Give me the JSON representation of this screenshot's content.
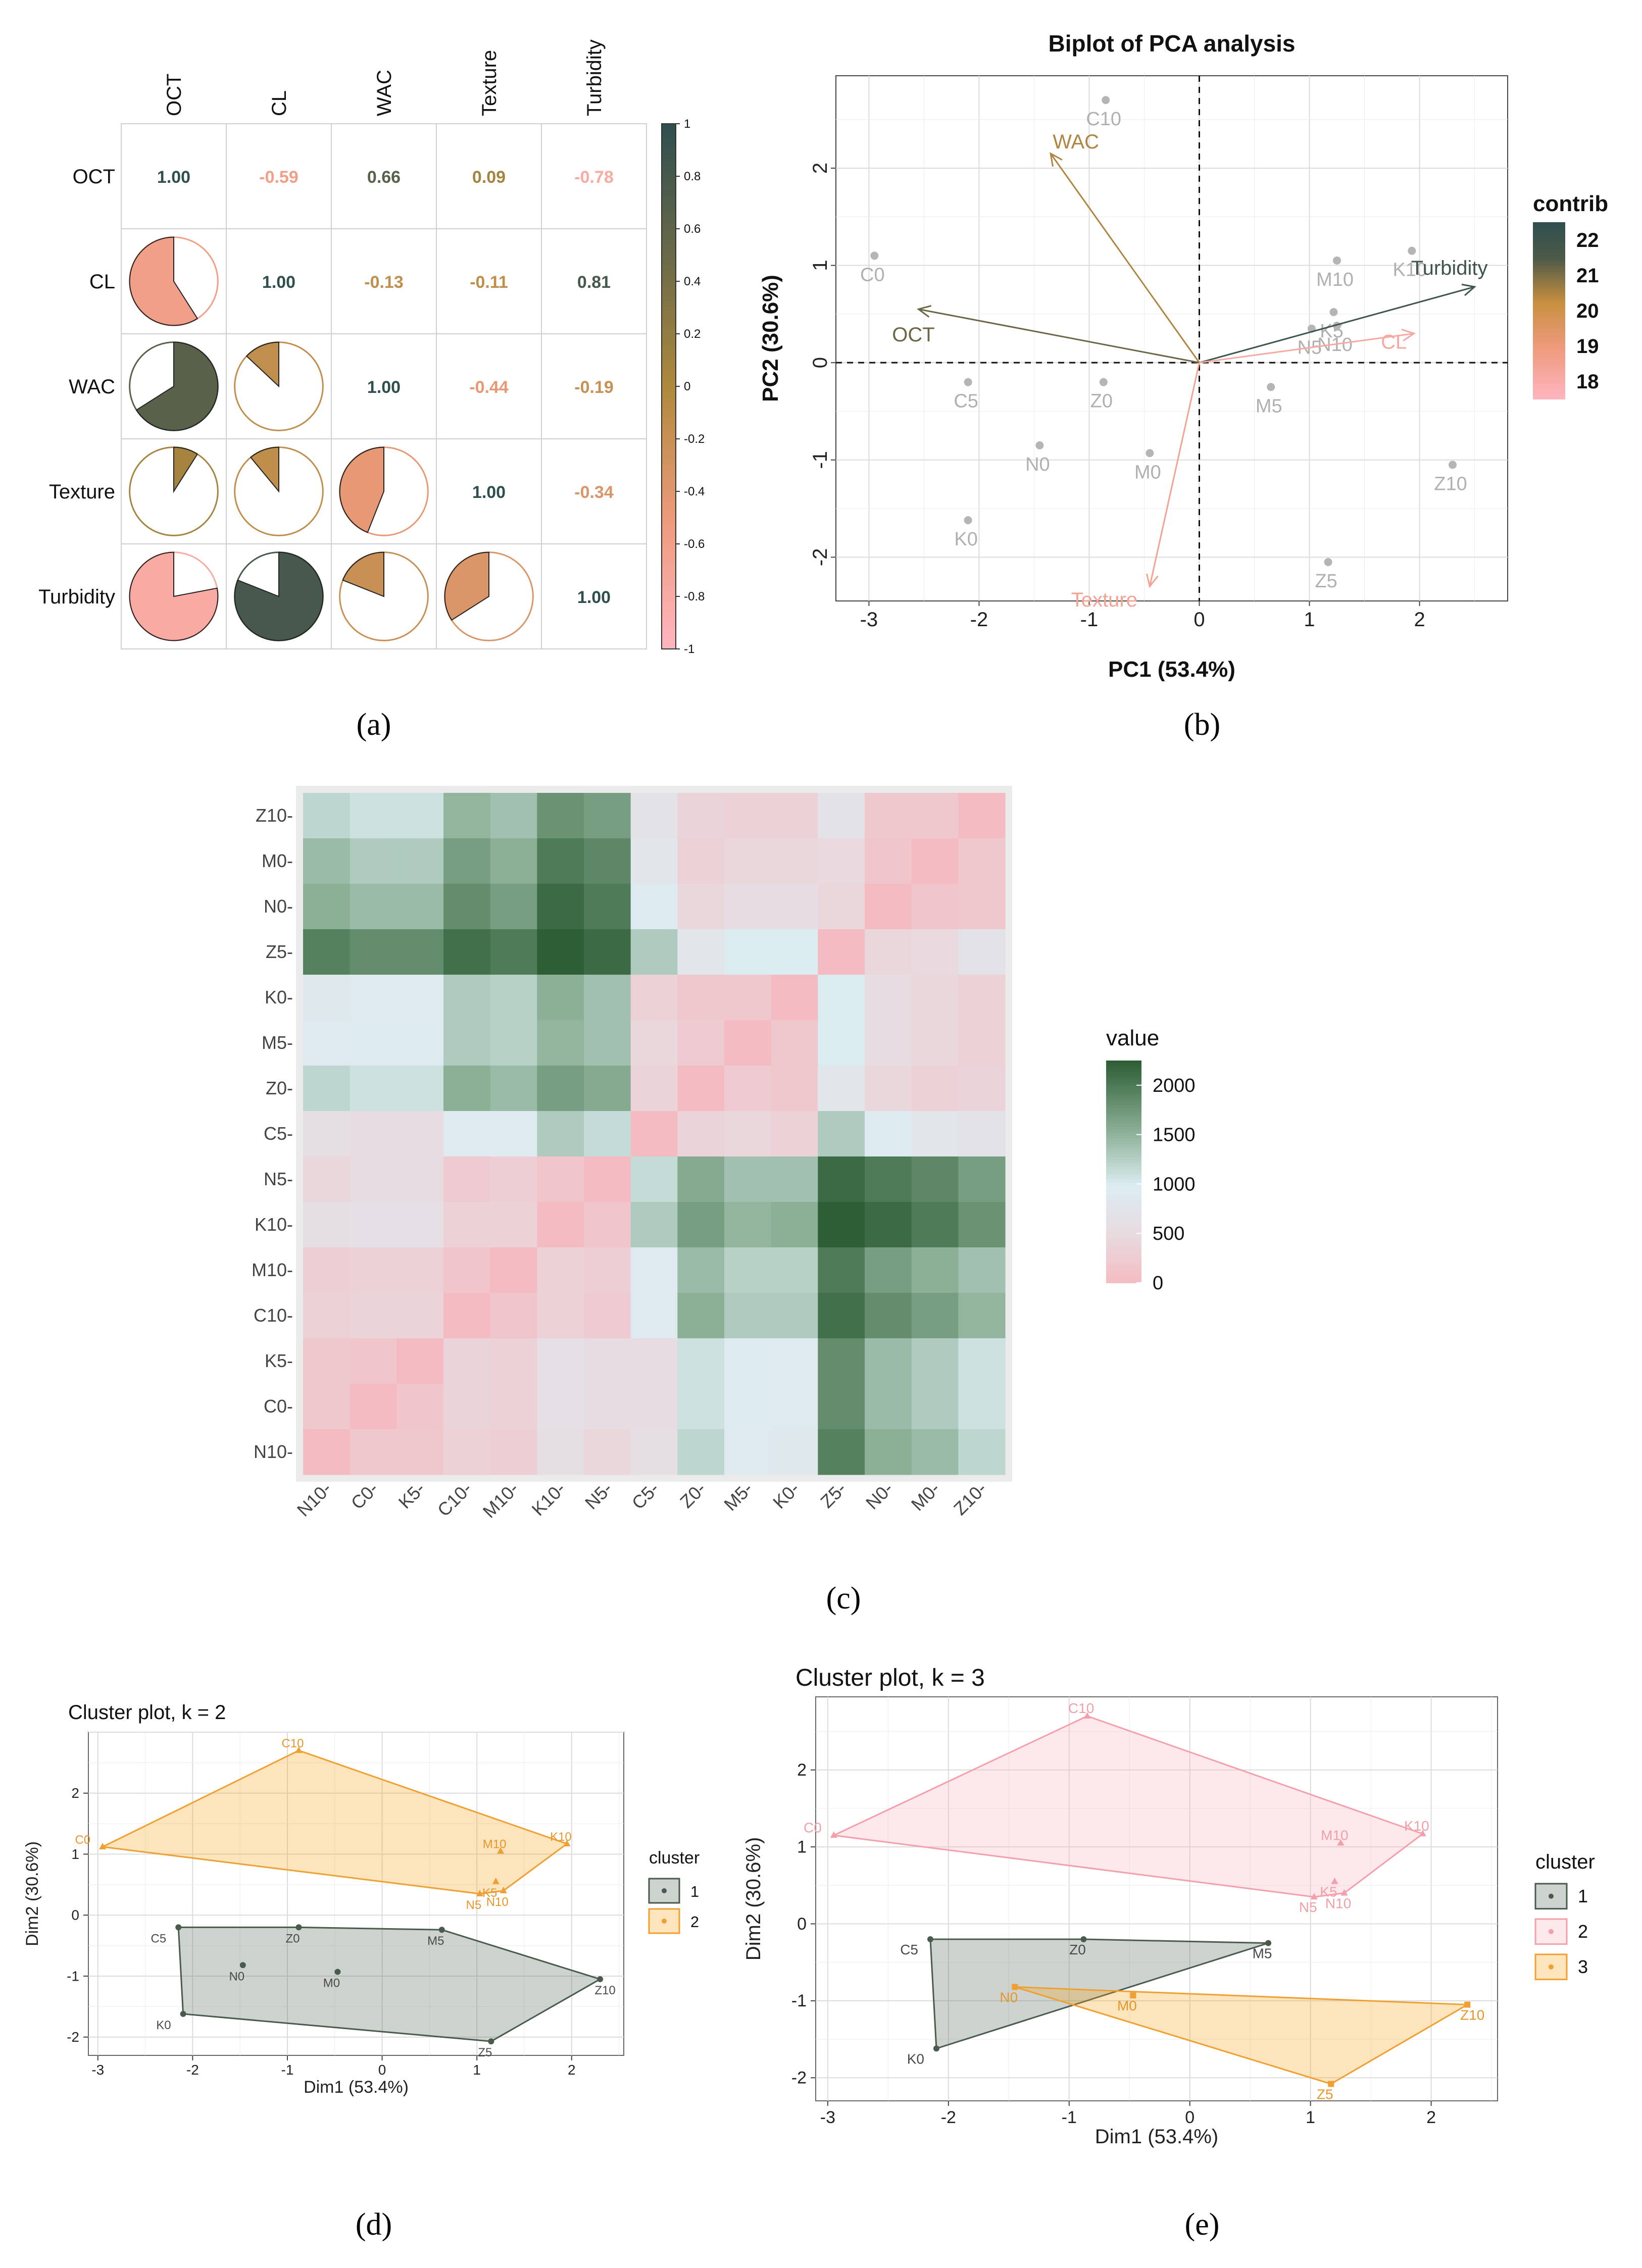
{
  "colors": {
    "corr_pos_strong": "#3d5750",
    "corr_neg_pink": "#f4a9a4",
    "corr_salmon": "#ec9a7c",
    "corr_gold": "#c49444",
    "corr_olive": "#a07a30",
    "heat_high": "#2e5e36",
    "heat_mid": "#dcedf2",
    "heat_low": "#f2bcc0",
    "cluster1": "#4a5a4d",
    "cluster2_orange": "#f0a030",
    "cluster2_pink": "#f8b4bc",
    "cluster3": "#f0a030",
    "pca_dark": "#3d4a45",
    "pca_gold": "#8a7040",
    "pca_pink": "#f08c94"
  },
  "panel_labels": {
    "a": "(a)",
    "b": "(b)",
    "c": "(c)",
    "d": "(d)",
    "e": "(e)"
  },
  "chart_data": [
    {
      "type": "heatmap",
      "id": "correlation-matrix",
      "variables": [
        "OCT",
        "CL",
        "WAC",
        "Texture",
        "Turbidity"
      ],
      "matrix": [
        [
          1.0,
          -0.59,
          0.66,
          0.09,
          -0.78
        ],
        [
          -0.59,
          1.0,
          -0.13,
          -0.11,
          0.81
        ],
        [
          0.66,
          -0.13,
          1.0,
          -0.44,
          -0.19
        ],
        [
          0.09,
          -0.11,
          -0.44,
          1.0,
          -0.34
        ],
        [
          -0.78,
          0.81,
          -0.19,
          -0.34,
          1.0
        ]
      ],
      "value_labels": [
        [
          "1.00",
          "-0.59",
          "0.66",
          "0.09",
          "-0.78"
        ],
        [
          "-0.59",
          "1.00",
          "-0.13",
          "-0.11",
          "0.81"
        ],
        [
          "0.66",
          "-0.13",
          "1.00",
          "-0.44",
          "-0.19"
        ],
        [
          "0.09",
          "-0.11",
          "-0.44",
          "1.00",
          "-0.34"
        ],
        [
          "-0.78",
          "0.81",
          "-0.19",
          "-0.34",
          "1.00"
        ]
      ],
      "colorbar_ticks": [
        "1",
        "0.8",
        "0.6",
        "0.4",
        "0.2",
        "0",
        "-0.2",
        "-0.4",
        "-0.6",
        "-0.8",
        "-1"
      ],
      "colorbar_range": [
        -1,
        1
      ]
    },
    {
      "type": "scatter",
      "id": "pca-biplot",
      "title": "Biplot of PCA analysis",
      "xlabel": "PC1 (53.4%)",
      "ylabel": "PC2 (30.6%)",
      "xlim": [
        -3.3,
        2.8
      ],
      "ylim": [
        -2.45,
        2.95
      ],
      "xticks": [
        -3,
        -2,
        -1,
        0,
        1,
        2
      ],
      "yticks": [
        -2,
        -1,
        0,
        1,
        2
      ],
      "points": [
        {
          "label": "C10",
          "x": -0.85,
          "y": 2.7
        },
        {
          "label": "C0",
          "x": -2.95,
          "y": 1.1
        },
        {
          "label": "C5",
          "x": -2.1,
          "y": -0.2
        },
        {
          "label": "Z0",
          "x": -0.87,
          "y": -0.2
        },
        {
          "label": "N0",
          "x": -1.45,
          "y": -0.85
        },
        {
          "label": "M0",
          "x": -0.45,
          "y": -0.93
        },
        {
          "label": "K0",
          "x": -2.1,
          "y": -1.62
        },
        {
          "label": "M10",
          "x": 1.25,
          "y": 1.05
        },
        {
          "label": "K10",
          "x": 1.93,
          "y": 1.15
        },
        {
          "label": "K5",
          "x": 1.22,
          "y": 0.52
        },
        {
          "label": "N5",
          "x": 1.02,
          "y": 0.35
        },
        {
          "label": "N10",
          "x": 1.25,
          "y": 0.38
        },
        {
          "label": "M5",
          "x": 0.65,
          "y": -0.25
        },
        {
          "label": "Z10",
          "x": 2.3,
          "y": -1.05
        },
        {
          "label": "Z5",
          "x": 1.17,
          "y": -2.05
        }
      ],
      "vectors": [
        {
          "label": "WAC",
          "x": -1.35,
          "y": 2.15,
          "contrib": 20.5
        },
        {
          "label": "OCT",
          "x": -2.55,
          "y": 0.55,
          "contrib": 21.2
        },
        {
          "label": "Turbidity",
          "x": 2.5,
          "y": 0.78,
          "contrib": 22.0
        },
        {
          "label": "CL",
          "x": 1.95,
          "y": 0.3,
          "contrib": 18.2
        },
        {
          "label": "Texture",
          "x": -0.45,
          "y": -2.3,
          "contrib": 18.5
        }
      ],
      "legend_title": "contrib",
      "legend_ticks": [
        "22",
        "21",
        "20",
        "19",
        "18"
      ],
      "legend_range": [
        17.5,
        22.5
      ]
    },
    {
      "type": "heatmap",
      "id": "distance-heatmap",
      "x_labels": [
        "N10-",
        "C0-",
        "K5-",
        "C10-",
        "M10-",
        "K10-",
        "N5-",
        "C5-",
        "Z0-",
        "M5-",
        "K0-",
        "Z5-",
        "N0-",
        "M0-",
        "Z10-"
      ],
      "y_labels": [
        "Z10-",
        "M0-",
        "N0-",
        "Z5-",
        "K0-",
        "M5-",
        "Z0-",
        "C5-",
        "N5-",
        "K10-",
        "M10-",
        "C10-",
        "K5-",
        "C0-",
        "N10-"
      ],
      "legend_title": "value",
      "legend_ticks": [
        "2000",
        "1500",
        "1000",
        "500",
        "0"
      ],
      "legend_range": [
        0,
        2250
      ],
      "values": [
        [
          1200,
          1100,
          1100,
          1500,
          1400,
          1800,
          1700,
          700,
          400,
          350,
          350,
          700,
          200,
          200,
          0
        ],
        [
          1450,
          1300,
          1300,
          1700,
          1550,
          2000,
          1900,
          800,
          350,
          450,
          450,
          500,
          150,
          0,
          200
        ],
        [
          1550,
          1450,
          1450,
          1850,
          1700,
          2150,
          2000,
          950,
          450,
          550,
          550,
          450,
          0,
          150,
          200
        ],
        [
          1950,
          1850,
          1850,
          2100,
          2000,
          2250,
          2150,
          1300,
          800,
          1000,
          1000,
          0,
          450,
          500,
          700
        ],
        [
          850,
          900,
          900,
          1300,
          1250,
          1550,
          1400,
          350,
          200,
          200,
          0,
          1000,
          550,
          450,
          350
        ],
        [
          900,
          950,
          950,
          1300,
          1250,
          1500,
          1400,
          450,
          250,
          0,
          200,
          1000,
          550,
          450,
          350
        ],
        [
          1200,
          1100,
          1100,
          1550,
          1450,
          1700,
          1600,
          400,
          0,
          250,
          200,
          800,
          450,
          350,
          400
        ],
        [
          600,
          550,
          550,
          900,
          900,
          1300,
          1150,
          0,
          400,
          450,
          350,
          1300,
          950,
          800,
          700
        ],
        [
          450,
          550,
          550,
          250,
          300,
          150,
          0,
          1150,
          1600,
          1400,
          1400,
          2150,
          2000,
          1900,
          1700
        ],
        [
          600,
          650,
          650,
          350,
          350,
          0,
          150,
          1300,
          1700,
          1500,
          1550,
          2250,
          2150,
          2000,
          1800
        ],
        [
          300,
          350,
          350,
          150,
          0,
          350,
          300,
          900,
          1450,
          1250,
          1250,
          2000,
          1700,
          1550,
          1400
        ],
        [
          350,
          400,
          400,
          0,
          150,
          350,
          250,
          900,
          1550,
          1300,
          1300,
          2100,
          1850,
          1700,
          1500
        ],
        [
          200,
          150,
          0,
          400,
          350,
          650,
          550,
          550,
          1100,
          950,
          900,
          1850,
          1450,
          1300,
          1100
        ],
        [
          200,
          0,
          150,
          400,
          350,
          650,
          550,
          550,
          1100,
          950,
          900,
          1850,
          1450,
          1300,
          1100
        ],
        [
          0,
          200,
          200,
          350,
          300,
          600,
          450,
          600,
          1200,
          900,
          850,
          1950,
          1550,
          1450,
          1200
        ]
      ]
    },
    {
      "type": "scatter",
      "id": "cluster-k2",
      "title": "Cluster plot, k = 2",
      "xlabel": "Dim1 (53.4%)",
      "ylabel": "Dim2 (30.6%)",
      "xlim": [
        -3.1,
        2.55
      ],
      "ylim": [
        -2.3,
        3.0
      ],
      "xticks": [
        -3,
        -2,
        -1,
        0,
        1,
        2
      ],
      "yticks": [
        -2,
        -1,
        0,
        1,
        2
      ],
      "legend_title": "cluster",
      "legend_items": [
        "1",
        "2"
      ],
      "clusters": [
        {
          "name": "1",
          "hull": [
            "C5",
            "Z0",
            "M5",
            "Z10",
            "Z5",
            "K0"
          ],
          "points": [
            {
              "label": "C5",
              "x": -2.15,
              "y": -0.2
            },
            {
              "label": "Z0",
              "x": -0.88,
              "y": -0.2
            },
            {
              "label": "N0",
              "x": -1.47,
              "y": -0.82
            },
            {
              "label": "M0",
              "x": -0.47,
              "y": -0.93
            },
            {
              "label": "M5",
              "x": 0.63,
              "y": -0.24
            },
            {
              "label": "Z10",
              "x": 2.3,
              "y": -1.05
            },
            {
              "label": "Z5",
              "x": 1.15,
              "y": -2.07
            },
            {
              "label": "K0",
              "x": -2.1,
              "y": -1.62
            }
          ]
        },
        {
          "name": "2",
          "hull": [
            "C0",
            "C10",
            "K10",
            "N10",
            "N5"
          ],
          "points": [
            {
              "label": "C0",
              "x": -2.95,
              "y": 1.12
            },
            {
              "label": "C10",
              "x": -0.88,
              "y": 2.7
            },
            {
              "label": "M10",
              "x": 1.25,
              "y": 1.05
            },
            {
              "label": "K10",
              "x": 1.95,
              "y": 1.17
            },
            {
              "label": "K5",
              "x": 1.2,
              "y": 0.55
            },
            {
              "label": "N5",
              "x": 1.03,
              "y": 0.35
            },
            {
              "label": "N10",
              "x": 1.28,
              "y": 0.4
            }
          ]
        }
      ]
    },
    {
      "type": "scatter",
      "id": "cluster-k3",
      "title": "Cluster plot, k = 3",
      "xlabel": "Dim1 (53.4%)",
      "ylabel": "Dim2 (30.6%)",
      "xlim": [
        -3.1,
        2.55
      ],
      "ylim": [
        -2.3,
        2.95
      ],
      "xticks": [
        -3,
        -2,
        -1,
        0,
        1,
        2
      ],
      "yticks": [
        -2,
        -1,
        0,
        1,
        2
      ],
      "legend_title": "cluster",
      "legend_items": [
        "1",
        "2",
        "3"
      ],
      "clusters": [
        {
          "name": "1",
          "hull": [
            "C5",
            "Z0",
            "M5",
            "K0"
          ],
          "points": [
            {
              "label": "C5",
              "x": -2.15,
              "y": -0.2
            },
            {
              "label": "Z0",
              "x": -0.88,
              "y": -0.2
            },
            {
              "label": "M5",
              "x": 0.65,
              "y": -0.25
            },
            {
              "label": "K0",
              "x": -2.1,
              "y": -1.62
            }
          ]
        },
        {
          "name": "2",
          "hull": [
            "C0",
            "C10",
            "K10",
            "N10",
            "N5"
          ],
          "points": [
            {
              "label": "C0",
              "x": -2.95,
              "y": 1.15
            },
            {
              "label": "C10",
              "x": -0.85,
              "y": 2.7
            },
            {
              "label": "M10",
              "x": 1.25,
              "y": 1.05
            },
            {
              "label": "K10",
              "x": 1.93,
              "y": 1.17
            },
            {
              "label": "K5",
              "x": 1.2,
              "y": 0.55
            },
            {
              "label": "N5",
              "x": 1.03,
              "y": 0.35
            },
            {
              "label": "N10",
              "x": 1.28,
              "y": 0.4
            }
          ]
        },
        {
          "name": "3",
          "hull": [
            "N0",
            "Z10",
            "Z5"
          ],
          "points": [
            {
              "label": "N0",
              "x": -1.45,
              "y": -0.82
            },
            {
              "label": "M0",
              "x": -0.47,
              "y": -0.93
            },
            {
              "label": "Z10",
              "x": 2.3,
              "y": -1.05
            },
            {
              "label": "Z5",
              "x": 1.17,
              "y": -2.08
            }
          ]
        }
      ]
    }
  ]
}
